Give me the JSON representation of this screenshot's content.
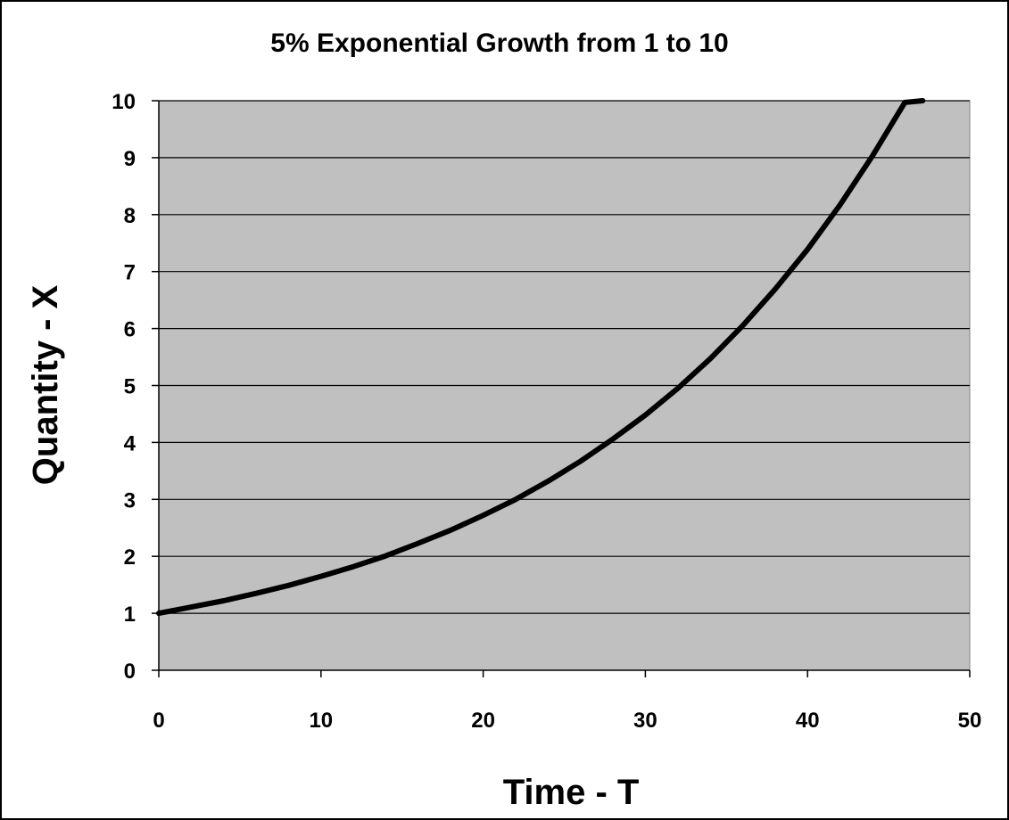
{
  "chart_data": {
    "type": "line",
    "title": "5% Exponential Growth from 1 to 10",
    "xlabel": "Time - T",
    "ylabel": "Quantity - X",
    "xlim": [
      0,
      50
    ],
    "ylim": [
      0,
      10
    ],
    "xticks": [
      0,
      10,
      20,
      30,
      40,
      50
    ],
    "yticks": [
      0,
      1,
      2,
      3,
      4,
      5,
      6,
      7,
      8,
      9,
      10
    ],
    "grid": "horizontal",
    "legend": "none",
    "series": [
      {
        "x": [
          0,
          2,
          4,
          6,
          8,
          10,
          12,
          14,
          16,
          18,
          20,
          22,
          24,
          26,
          28,
          30,
          32,
          34,
          36,
          38,
          40,
          42,
          44,
          46,
          47.1
        ],
        "y": [
          1,
          1.11,
          1.22,
          1.35,
          1.49,
          1.65,
          1.82,
          2.01,
          2.23,
          2.46,
          2.72,
          3.0,
          3.32,
          3.67,
          4.06,
          4.48,
          4.95,
          5.47,
          6.05,
          6.69,
          7.39,
          8.17,
          9.03,
          9.97,
          10
        ]
      }
    ],
    "colors": {
      "plot_background": "#c0c0c0",
      "line": "#000000",
      "gridline": "#000000",
      "frame": "#000000"
    }
  }
}
